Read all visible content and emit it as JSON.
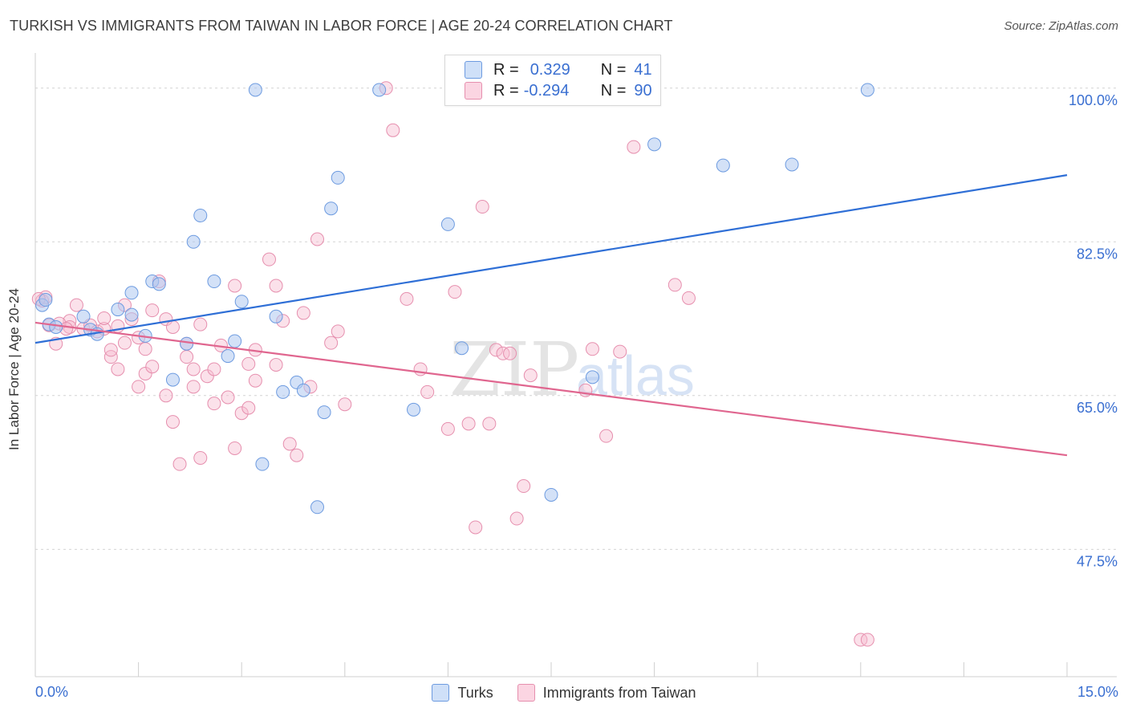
{
  "title": "TURKISH VS IMMIGRANTS FROM TAIWAN IN LABOR FORCE | AGE 20-24 CORRELATION CHART",
  "source": "Source: ZipAtlas.com",
  "watermark": {
    "zip": "ZIP",
    "atlas": "atlas"
  },
  "stats": [
    {
      "r_label": "R =",
      "r_value": "0.329",
      "n_label": "N =",
      "n_value": "41",
      "color": "#aec9f0",
      "stroke": "#6d9be0"
    },
    {
      "r_label": "R =",
      "r_value": "-0.294",
      "n_label": "N =",
      "n_value": "90",
      "color": "#f6bcd0",
      "stroke": "#e68fae"
    }
  ],
  "chart_data": {
    "type": "scatter",
    "ylabel": "In Labor Force | Age 20-24",
    "xlim": [
      0,
      15
    ],
    "ylim": [
      33,
      104
    ],
    "x_tick_labels": [
      "0.0%",
      "15.0%"
    ],
    "y_ticks": [
      47.5,
      65.0,
      82.5,
      100.0
    ],
    "y_tick_labels": [
      "47.5%",
      "65.0%",
      "82.5%",
      "100.0%"
    ],
    "grid": "horizontal dashed",
    "legend": [
      "Turks",
      "Immigrants from Taiwan"
    ],
    "series": [
      {
        "name": "Turks",
        "color": "#6d9be0",
        "fill": "#aec9f0",
        "trend": {
          "x": [
            0,
            15
          ],
          "y": [
            71.0,
            90.1
          ],
          "color": "#2f6fd6"
        },
        "points": [
          [
            0.1,
            75.3
          ],
          [
            0.2,
            73.1
          ],
          [
            0.3,
            72.8
          ],
          [
            0.7,
            74.0
          ],
          [
            0.8,
            72.5
          ],
          [
            0.9,
            72.0
          ],
          [
            1.2,
            74.8
          ],
          [
            1.4,
            74.2
          ],
          [
            1.4,
            76.7
          ],
          [
            1.6,
            71.8
          ],
          [
            1.7,
            78.0
          ],
          [
            1.8,
            77.7
          ],
          [
            2.0,
            66.8
          ],
          [
            2.2,
            70.9
          ],
          [
            2.3,
            82.5
          ],
          [
            2.4,
            85.5
          ],
          [
            2.6,
            78.0
          ],
          [
            2.8,
            69.5
          ],
          [
            2.9,
            71.2
          ],
          [
            3.0,
            75.7
          ],
          [
            3.2,
            99.8
          ],
          [
            3.3,
            57.2
          ],
          [
            3.5,
            74.0
          ],
          [
            3.6,
            65.4
          ],
          [
            3.8,
            66.5
          ],
          [
            3.9,
            65.6
          ],
          [
            4.1,
            52.3
          ],
          [
            4.2,
            63.1
          ],
          [
            4.3,
            86.3
          ],
          [
            4.4,
            89.8
          ],
          [
            5.0,
            99.8
          ],
          [
            5.5,
            63.4
          ],
          [
            6.0,
            84.5
          ],
          [
            6.2,
            70.4
          ],
          [
            7.5,
            53.7
          ],
          [
            8.1,
            67.1
          ],
          [
            9.0,
            93.6
          ],
          [
            10.0,
            91.2
          ],
          [
            11.0,
            91.3
          ],
          [
            12.1,
            99.8
          ],
          [
            0.15,
            75.9
          ]
        ]
      },
      {
        "name": "Immigrants from Taiwan",
        "color": "#e68fae",
        "fill": "#f6bcd0",
        "trend": {
          "x": [
            0,
            15
          ],
          "y": [
            73.3,
            58.2
          ],
          "color": "#e0668f"
        },
        "points": [
          [
            0.1,
            75.8
          ],
          [
            0.15,
            76.2
          ],
          [
            0.2,
            73.0
          ],
          [
            0.3,
            70.9
          ],
          [
            0.5,
            73.5
          ],
          [
            0.5,
            72.8
          ],
          [
            0.6,
            75.3
          ],
          [
            0.7,
            72.6
          ],
          [
            0.8,
            73.0
          ],
          [
            0.9,
            72.3
          ],
          [
            1.0,
            72.6
          ],
          [
            1.0,
            73.8
          ],
          [
            1.1,
            69.4
          ],
          [
            1.1,
            70.2
          ],
          [
            1.2,
            72.9
          ],
          [
            1.2,
            68.0
          ],
          [
            1.3,
            75.3
          ],
          [
            1.3,
            71.0
          ],
          [
            1.4,
            73.7
          ],
          [
            1.5,
            71.6
          ],
          [
            1.5,
            66.0
          ],
          [
            1.6,
            67.5
          ],
          [
            1.6,
            70.3
          ],
          [
            1.7,
            74.7
          ],
          [
            1.7,
            68.3
          ],
          [
            1.8,
            78.0
          ],
          [
            1.9,
            73.7
          ],
          [
            1.9,
            65.0
          ],
          [
            2.0,
            72.8
          ],
          [
            2.0,
            62.0
          ],
          [
            2.1,
            57.2
          ],
          [
            2.2,
            70.9
          ],
          [
            2.2,
            69.4
          ],
          [
            2.3,
            68.0
          ],
          [
            2.3,
            66.0
          ],
          [
            2.4,
            57.9
          ],
          [
            2.4,
            73.1
          ],
          [
            2.5,
            67.2
          ],
          [
            2.6,
            68.0
          ],
          [
            2.6,
            64.1
          ],
          [
            2.7,
            70.7
          ],
          [
            2.8,
            64.8
          ],
          [
            2.9,
            77.5
          ],
          [
            2.9,
            59.0
          ],
          [
            3.0,
            63.0
          ],
          [
            3.1,
            63.6
          ],
          [
            3.1,
            68.6
          ],
          [
            3.2,
            66.7
          ],
          [
            3.2,
            70.2
          ],
          [
            3.4,
            80.5
          ],
          [
            3.5,
            77.5
          ],
          [
            3.5,
            68.5
          ],
          [
            3.6,
            73.5
          ],
          [
            3.7,
            59.5
          ],
          [
            3.8,
            58.2
          ],
          [
            3.9,
            74.4
          ],
          [
            4.0,
            66.0
          ],
          [
            4.1,
            82.8
          ],
          [
            4.3,
            71.0
          ],
          [
            4.4,
            72.3
          ],
          [
            4.5,
            64.0
          ],
          [
            5.1,
            100.0
          ],
          [
            5.2,
            95.2
          ],
          [
            5.4,
            76.0
          ],
          [
            5.6,
            68.0
          ],
          [
            5.7,
            65.4
          ],
          [
            6.0,
            61.2
          ],
          [
            6.1,
            76.8
          ],
          [
            6.3,
            61.8
          ],
          [
            6.4,
            50.0
          ],
          [
            6.5,
            86.5
          ],
          [
            6.6,
            61.8
          ],
          [
            6.7,
            70.2
          ],
          [
            6.8,
            69.8
          ],
          [
            6.9,
            69.8
          ],
          [
            7.0,
            51.0
          ],
          [
            7.1,
            54.7
          ],
          [
            7.2,
            67.3
          ],
          [
            8.0,
            65.6
          ],
          [
            8.1,
            70.3
          ],
          [
            8.3,
            60.4
          ],
          [
            8.5,
            70.0
          ],
          [
            8.7,
            93.3
          ],
          [
            9.3,
            77.6
          ],
          [
            9.5,
            76.1
          ],
          [
            12.0,
            37.2
          ],
          [
            12.1,
            37.2
          ],
          [
            0.05,
            76.0
          ],
          [
            0.35,
            73.2
          ],
          [
            0.45,
            72.6
          ]
        ]
      }
    ]
  }
}
